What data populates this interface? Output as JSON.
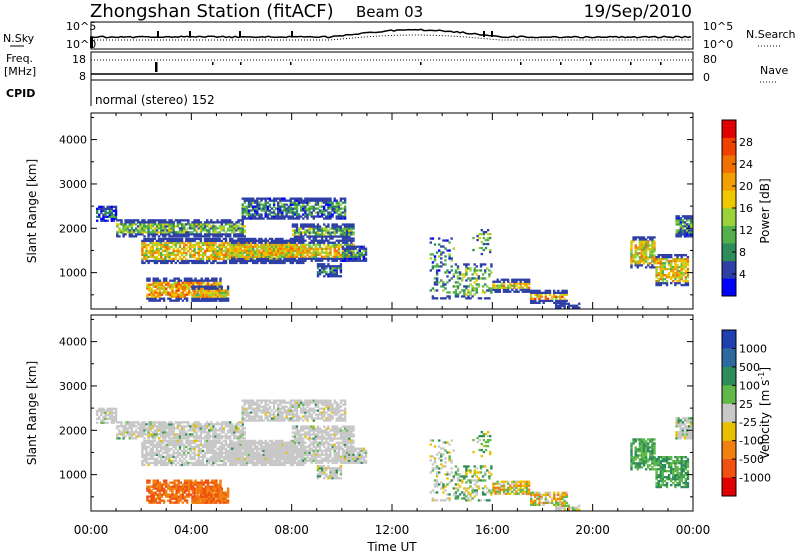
{
  "header": {
    "station": "Zhongshan Station (fitACF)",
    "beam": "Beam 03",
    "date": "19/Sep/2010"
  },
  "info_panel": {
    "left_labels": {
      "nsky": "N.Sky",
      "freq": "Freq.",
      "mhz": "[MHz]",
      "cpid": "CPID"
    },
    "right_labels": {
      "nsearch": "N.Search",
      "nave": "Nave"
    },
    "nsky_ticks": [
      "10^5",
      "10^0"
    ],
    "nsearch_ticks": [
      "10^5",
      "10^0"
    ],
    "freq_ticks": [
      "18",
      "8"
    ],
    "nave_ticks": [
      "80",
      "0"
    ],
    "cpid_text": "normal (stereo) 152"
  },
  "colors": {
    "axis": "#000000",
    "velocity_ground": "#c8c8c8"
  },
  "chart_data": [
    {
      "type": "heatmap",
      "name": "power",
      "ylabel": "Slant Range [km]",
      "xlabel": "",
      "xlim": [
        0,
        24
      ],
      "ylim": [
        180,
        4600
      ],
      "y_ticks": [
        "1000",
        "2000",
        "3000",
        "4000"
      ],
      "colorbar": {
        "label": "Power [dB]",
        "ticks": [
          "4",
          "8",
          "12",
          "16",
          "20",
          "24",
          "28"
        ],
        "colors": [
          "#0000ff",
          "#2e40a6",
          "#2e8c5a",
          "#54b04a",
          "#9ad23a",
          "#f0c800",
          "#f0a000",
          "#f07000",
          "#f04000",
          "#e00000"
        ]
      }
    },
    {
      "type": "heatmap",
      "name": "velocity",
      "ylabel": "Slant Range [km]",
      "xlabel": "Time UT",
      "xlim": [
        0,
        24
      ],
      "ylim": [
        180,
        4600
      ],
      "x_ticks": [
        "00:00",
        "04:00",
        "08:00",
        "12:00",
        "16:00",
        "20:00",
        "00:00"
      ],
      "y_ticks": [
        "1000",
        "2000",
        "3000",
        "4000"
      ],
      "colorbar": {
        "label_main": "Velocity",
        "label_unit": "[m s",
        "label_exp": "-1",
        "label_close": "]",
        "ticks": [
          "1000",
          "500",
          "100",
          "25",
          "-25",
          "-100",
          "-500",
          "-1000"
        ],
        "colors": [
          "#2040b0",
          "#2e6aa0",
          "#2e8c5a",
          "#60b84a",
          "#c8c8c8",
          "#e8c000",
          "#f08010",
          "#f05010",
          "#e00000"
        ]
      }
    }
  ]
}
